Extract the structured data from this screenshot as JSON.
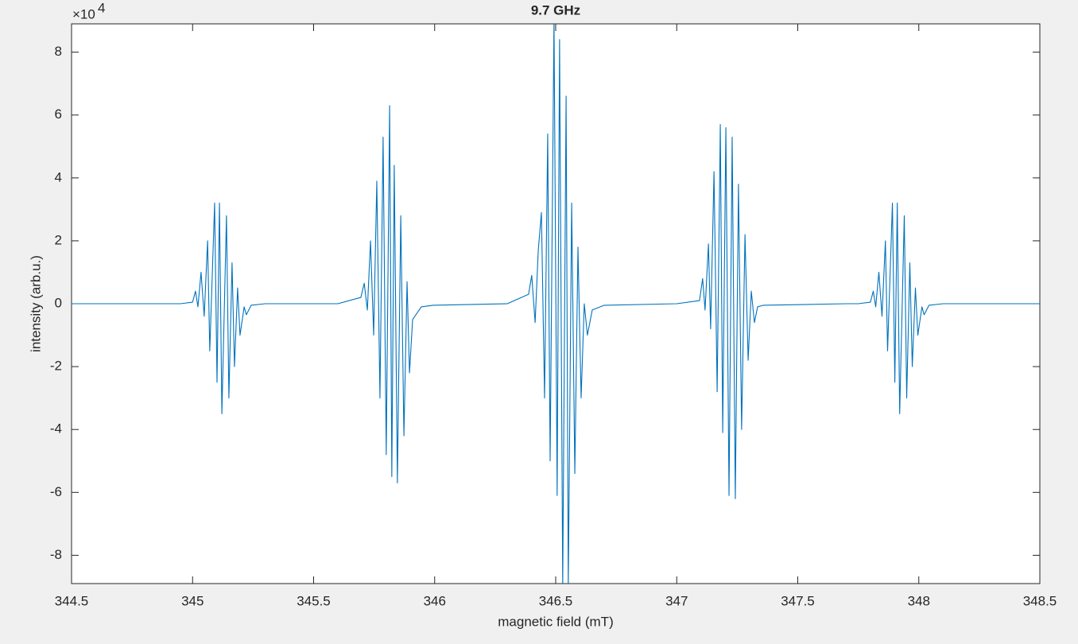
{
  "chart_data": {
    "type": "line",
    "title": "9.7 GHz",
    "x_label": "magnetic field (mT)",
    "y_label": "intensity (arb.u.)",
    "y_scale_label": "×10",
    "y_scale_exponent": "4",
    "color": "#0072bd",
    "xlim": [
      344.5,
      348.5
    ],
    "xticks": [
      344.5,
      345,
      345.5,
      346,
      346.5,
      347,
      347.5,
      348,
      348.5
    ],
    "ylim": [
      -8.9,
      8.9
    ],
    "yticks": [
      -8,
      -6,
      -4,
      -2,
      0,
      2,
      4,
      6,
      8
    ],
    "grid": false,
    "x": [
      344.5,
      344.95,
      345.0,
      345.012,
      345.022,
      345.035,
      345.048,
      345.062,
      345.071,
      345.091,
      345.101,
      345.111,
      345.121,
      345.14,
      345.15,
      345.163,
      345.173,
      345.186,
      345.196,
      345.213,
      345.222,
      345.242,
      345.3,
      345.6,
      345.695,
      345.709,
      345.722,
      345.735,
      345.748,
      345.761,
      345.774,
      345.787,
      345.8,
      345.814,
      345.823,
      345.833,
      345.846,
      345.86,
      345.873,
      345.886,
      345.896,
      345.909,
      345.945,
      345.994,
      346.3,
      346.388,
      346.401,
      346.415,
      346.428,
      346.441,
      346.454,
      346.467,
      346.477,
      346.493,
      346.506,
      346.516,
      346.529,
      346.543,
      346.552,
      346.566,
      346.579,
      346.592,
      346.605,
      346.618,
      346.631,
      346.651,
      346.7,
      347.0,
      347.094,
      347.107,
      347.117,
      347.131,
      347.14,
      347.154,
      347.167,
      347.18,
      347.19,
      347.203,
      347.216,
      347.229,
      347.242,
      347.255,
      347.268,
      347.282,
      347.295,
      347.308,
      347.321,
      347.334,
      347.357,
      347.7,
      347.75,
      347.8,
      347.812,
      347.822,
      347.835,
      347.848,
      347.862,
      347.871,
      347.891,
      347.901,
      347.911,
      347.921,
      347.94,
      347.95,
      347.963,
      347.973,
      347.986,
      347.996,
      348.013,
      348.022,
      348.042,
      348.1,
      348.5
    ],
    "values": [
      0,
      0,
      0.05,
      0.4,
      -0.1,
      1.0,
      -0.4,
      2.0,
      -1.5,
      3.2,
      -2.5,
      3.2,
      -3.5,
      2.8,
      -3.0,
      1.3,
      -2.0,
      0.5,
      -1.0,
      -0.1,
      -0.35,
      -0.05,
      0,
      0,
      0.2,
      0.65,
      -0.2,
      2.0,
      -1.0,
      3.9,
      -3.0,
      5.3,
      -4.8,
      6.3,
      -5.5,
      4.4,
      -5.7,
      2.8,
      -4.2,
      0.7,
      -2.2,
      -0.5,
      -0.1,
      -0.05,
      0,
      0.3,
      0.9,
      -0.6,
      1.7,
      2.9,
      -3.0,
      5.4,
      -5.0,
      9.0,
      -6.1,
      8.4,
      -9.0,
      6.6,
      -9.0,
      3.2,
      -5.4,
      1.8,
      -3.0,
      0.0,
      -1.0,
      -0.2,
      -0.05,
      0,
      0.1,
      0.8,
      -0.2,
      1.9,
      -0.8,
      4.2,
      -2.8,
      5.7,
      -4.1,
      5.6,
      -6.1,
      5.3,
      -6.2,
      3.8,
      -4.0,
      2.2,
      -1.8,
      0.4,
      -0.6,
      -0.1,
      -0.05,
      0,
      0,
      0.05,
      0.4,
      -0.1,
      1.0,
      -0.4,
      2.0,
      -1.5,
      3.2,
      -2.5,
      3.2,
      -3.5,
      2.8,
      -3.0,
      1.3,
      -2.0,
      0.5,
      -1.0,
      -0.1,
      -0.35,
      -0.05,
      0,
      0
    ]
  }
}
